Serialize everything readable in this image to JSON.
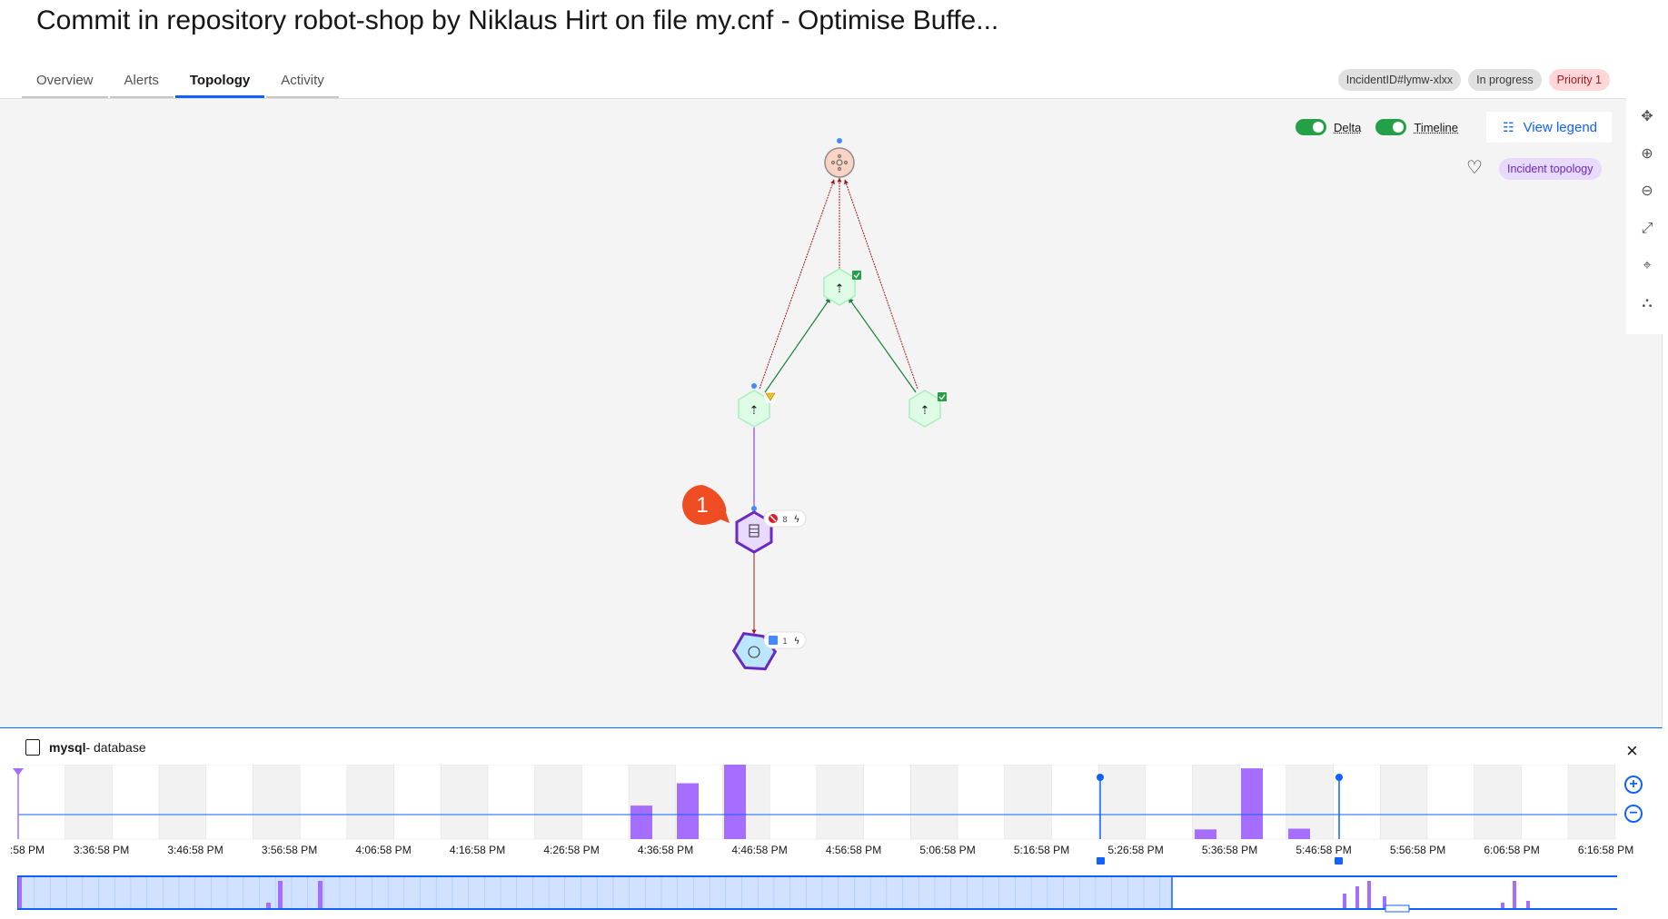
{
  "page": {
    "title": "Commit in repository robot-shop by Niklaus Hirt on file my.cnf - Optimise Buffe..."
  },
  "tabs": [
    {
      "label": "Overview"
    },
    {
      "label": "Alerts"
    },
    {
      "label": "Topology"
    },
    {
      "label": "Activity"
    }
  ],
  "tags": {
    "incident_id": "IncidentID#lymw-xlxx",
    "status": "In progress",
    "priority": "Priority 1"
  },
  "toolbar": {
    "delta_label": "Delta",
    "timeline_label": "Timeline",
    "view_legend": "View legend",
    "incident_topology": "Incident topology",
    "colors": {
      "toggle_on": "#24a148",
      "link": "#0f62fe",
      "incident_purple": "#6929c4"
    }
  },
  "rail_icons": [
    "move-icon",
    "zoom-in-icon",
    "zoom-out-icon",
    "fit-screen-icon",
    "location-pin-icon",
    "topology-layout-icon"
  ],
  "topology": {
    "nodes": [
      {
        "id": "root",
        "icon": "cluster-icon"
      },
      {
        "id": "deployment-1",
        "icon": "deploy-icon",
        "status": "ok"
      },
      {
        "id": "deployment-2",
        "icon": "deploy-icon",
        "status": "warning"
      },
      {
        "id": "deployment-3",
        "icon": "deploy-icon",
        "status": "ok"
      },
      {
        "id": "mysql",
        "icon": "database-icon",
        "status": "critical",
        "alert_count": "8"
      },
      {
        "id": "service",
        "icon": "service-icon",
        "status": "info",
        "alert_count": "1"
      }
    ],
    "callout_number": "1"
  },
  "detail": {
    "name": "mysql",
    "type": "- database",
    "close_label": "×"
  },
  "timeline": {
    "ticks": [
      ":58 PM",
      "3:36:58 PM",
      "3:46:58 PM",
      "3:56:58 PM",
      "4:06:58 PM",
      "4:16:58 PM",
      "4:26:58 PM",
      "4:36:58 PM",
      "4:46:58 PM",
      "4:56:58 PM",
      "5:06:58 PM",
      "5:16:58 PM",
      "5:26:58 PM",
      "5:36:58 PM",
      "5:46:58 PM",
      "5:56:58 PM",
      "6:06:58 PM",
      "6:16:58 PM"
    ],
    "bars": [
      {
        "slot": 13,
        "level": 0.45
      },
      {
        "slot": 14,
        "level": 0.75
      },
      {
        "slot": 15,
        "level": 1.0
      },
      {
        "slot": 25,
        "level": 0.13
      },
      {
        "slot": 26,
        "level": 0.95
      },
      {
        "slot": 27,
        "level": 0.14
      }
    ],
    "colors": {
      "bar": "#a56eff",
      "line": "#0f62fe",
      "shade": "#f2f2f2"
    }
  }
}
